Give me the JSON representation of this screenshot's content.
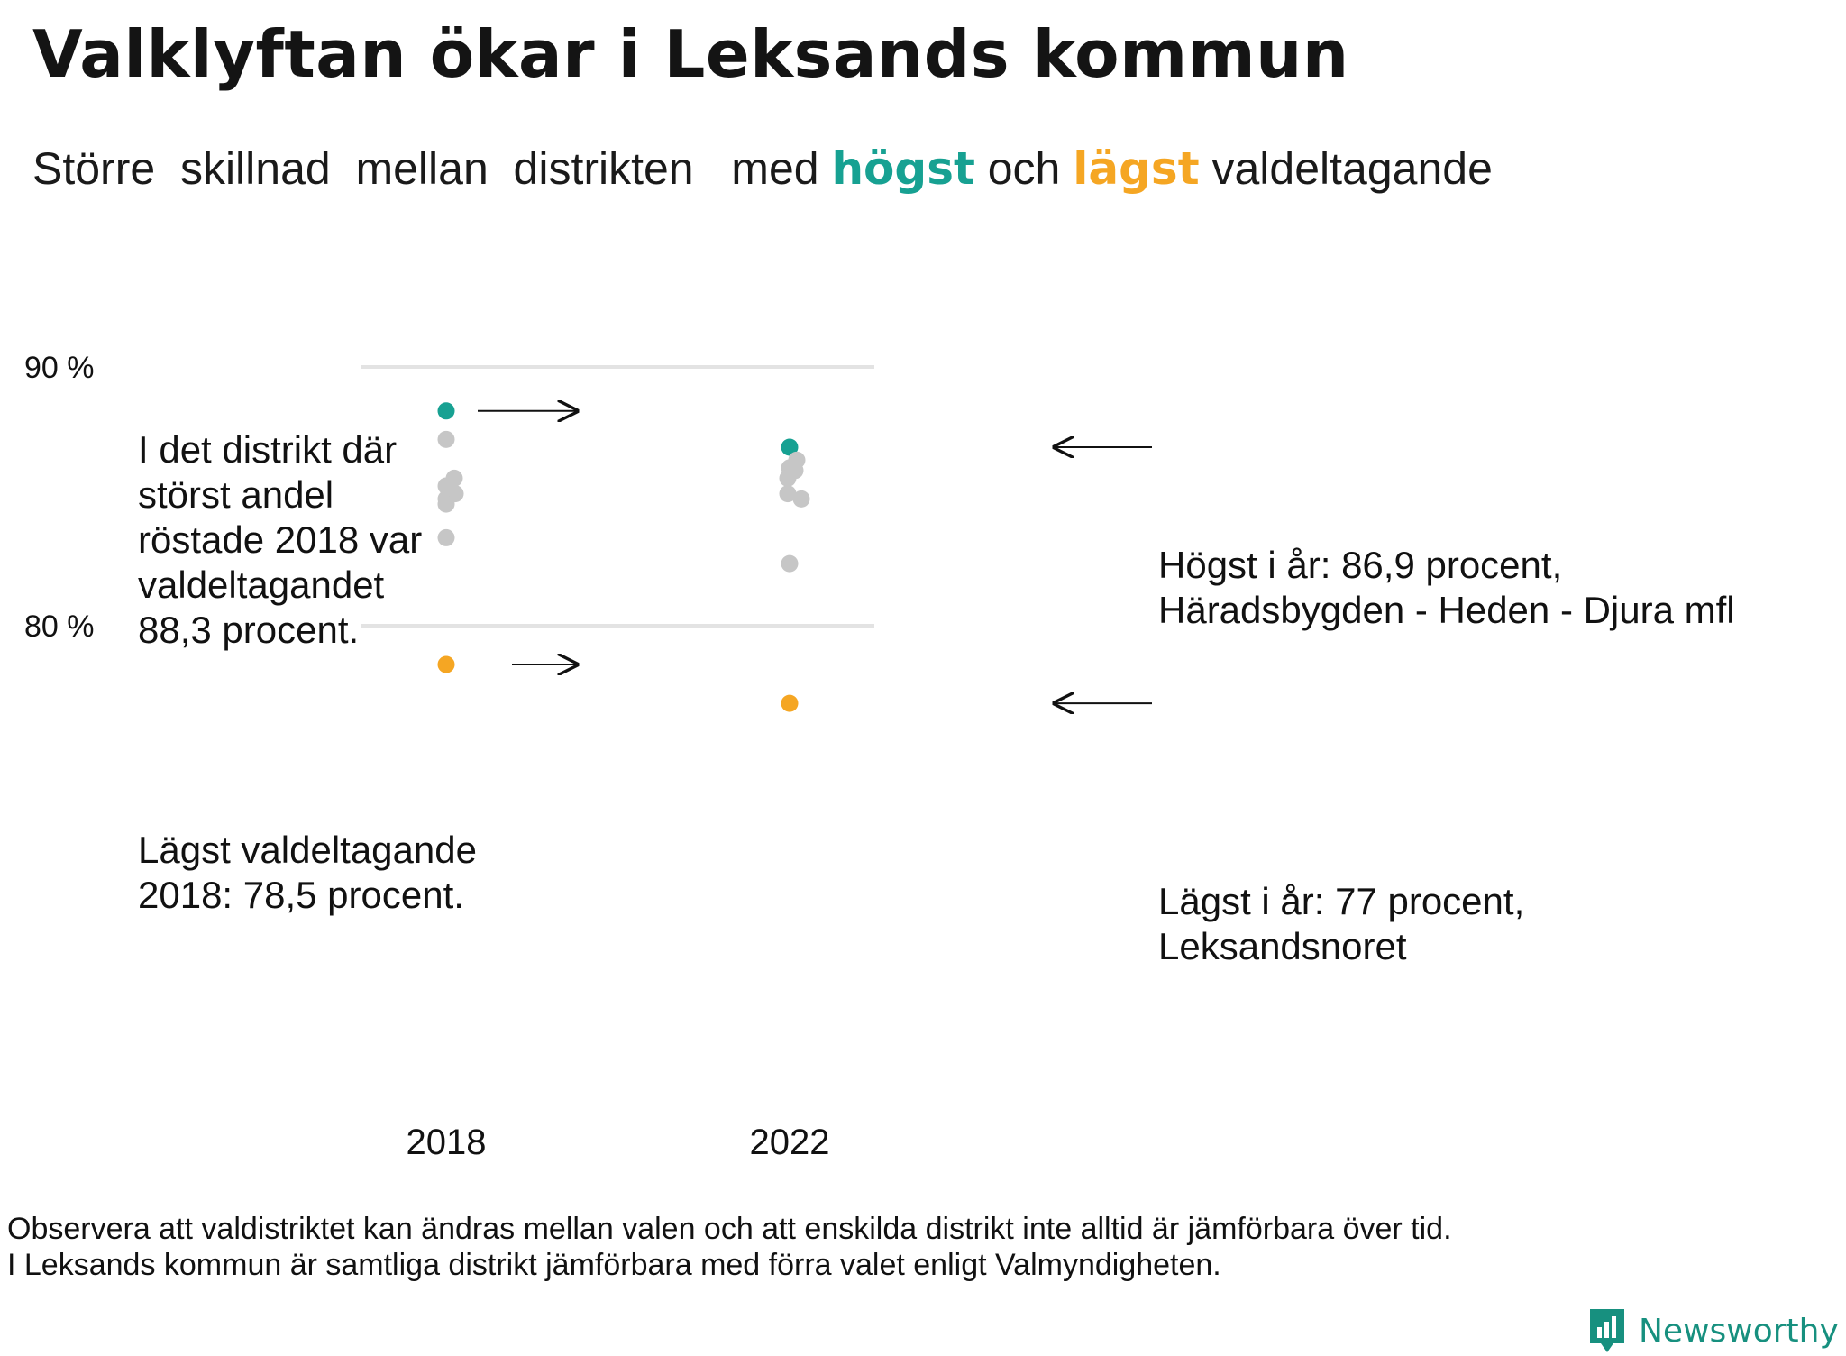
{
  "title": "Valklyftan ökar i Leksands kommun",
  "subtitle": {
    "part1": "Större  skillnad  mellan  distrikten   med ",
    "high_word": "högst",
    "middle": " och ",
    "low_word": "lägst",
    "part2": " valdeltagande"
  },
  "colors": {
    "high": "#17a192",
    "low": "#f5a623",
    "other": "#c6c6c6",
    "grid": "#e3e3e3"
  },
  "chart_data": {
    "type": "scatter",
    "title": "Valklyftan ökar i Leksands kommun",
    "subtitle": "Större skillnad mellan distrikten med högst och lägst valdeltagande",
    "x": [
      "2018",
      "2022"
    ],
    "y_ticks": [
      {
        "value": 80,
        "label": "80 %"
      },
      {
        "value": 90,
        "label": "90 %"
      }
    ],
    "ylim": [
      73.7,
      95.5
    ],
    "grid": true,
    "series": [
      {
        "x": "2018",
        "points": [
          {
            "y": 88.3,
            "role": "high"
          },
          {
            "y": 87.2,
            "role": "other"
          },
          {
            "y": 85.7,
            "role": "other"
          },
          {
            "y": 85.4,
            "role": "other"
          },
          {
            "y": 85.1,
            "role": "other"
          },
          {
            "y": 84.9,
            "role": "other"
          },
          {
            "y": 84.7,
            "role": "other"
          },
          {
            "y": 83.4,
            "role": "other"
          },
          {
            "y": 78.5,
            "role": "low"
          }
        ]
      },
      {
        "x": "2022",
        "points": [
          {
            "y": 86.9,
            "role": "high"
          },
          {
            "y": 86.4,
            "role": "other"
          },
          {
            "y": 86.1,
            "role": "other"
          },
          {
            "y": 86.0,
            "role": "other"
          },
          {
            "y": 85.7,
            "role": "other"
          },
          {
            "y": 85.1,
            "role": "other"
          },
          {
            "y": 84.9,
            "role": "other"
          },
          {
            "y": 82.4,
            "role": "other"
          },
          {
            "y": 77.0,
            "role": "low"
          }
        ]
      }
    ],
    "annotations": {
      "high_2018": [
        "I det distrikt där",
        "störst andel",
        "röstade 2018 var",
        "valdeltagandet",
        "88,3 procent."
      ],
      "low_2018": [
        "Lägst valdeltagande",
        "2018: 78,5 procent."
      ],
      "high_2022": [
        "Högst i år: 86,9 procent,",
        "Häradsbygden - Heden - Djura mfl"
      ],
      "low_2022": [
        "Lägst i år: 77 procent,",
        "Leksandsnoret"
      ]
    }
  },
  "footnote": [
    "Observera att valdistriktet kan ändras mellan valen och att enskilda distrikt inte alltid är jämförbara över tid.",
    "I Leksands kommun är samtliga distrikt jämförbara med förra valet enligt Valmyndigheten."
  ],
  "brand": {
    "name": "Newsworthy",
    "icon": "newsworthy-logo-icon",
    "color": "#17907f"
  }
}
